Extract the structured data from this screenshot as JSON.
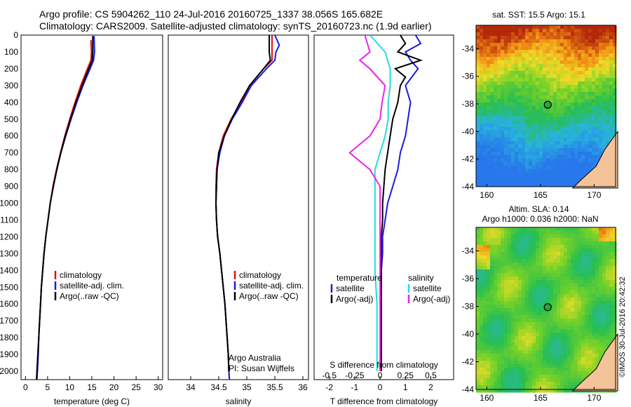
{
  "header": {
    "line1": "Argo profile: CS 5904262_110 24-Jul-2016 20160725_1337 38.056S 165.682E",
    "line2": "Climatology: CARS2009. Satellite-adjusted climatology: synTS_20160723.nc (1.9d earlier)"
  },
  "colors": {
    "climatology": "#dd1111",
    "satellite": "#1a1ae0",
    "argo": "#000000",
    "sal_satellite": "#22dddd",
    "sal_argo": "#ee22ee"
  },
  "depth_axis": {
    "ticks": [
      0,
      100,
      200,
      300,
      400,
      500,
      600,
      700,
      800,
      900,
      1000,
      1100,
      1200,
      1300,
      1400,
      1500,
      1600,
      1700,
      1800,
      1900,
      2000
    ],
    "range": [
      0,
      2050
    ]
  },
  "chart_data": [
    {
      "type": "line",
      "name": "temperature-profile",
      "xlabel": "temperature (deg C)",
      "xlim": [
        -1,
        31
      ],
      "xticks": [
        0,
        5,
        10,
        15,
        20,
        25,
        30
      ],
      "legend": [
        "climatology",
        "satellite-adj. clim.",
        "Argo(..raw -QC)"
      ],
      "series": [
        {
          "name": "climatology",
          "depth": [
            30,
            100,
            150,
            200,
            300,
            400,
            500,
            600,
            700,
            800,
            900,
            1000,
            1100,
            1200,
            1300,
            1400,
            1500,
            1600,
            1700,
            1800,
            1900,
            2000,
            2050
          ],
          "values": [
            14.8,
            14.9,
            14.8,
            14.0,
            12.5,
            11.2,
            10.0,
            8.9,
            7.9,
            7.0,
            6.2,
            5.6,
            5.1,
            4.6,
            4.2,
            3.9,
            3.6,
            3.4,
            3.2,
            3.0,
            2.8,
            2.6,
            2.5
          ]
        },
        {
          "name": "satellite-adj. clim.",
          "depth": [
            5,
            100,
            150,
            200,
            300,
            400,
            500,
            600,
            700,
            800,
            900,
            1000,
            1100,
            1200,
            1300,
            1400,
            1500,
            1600,
            1700,
            1800,
            1900,
            2000,
            2050
          ],
          "values": [
            15.5,
            15.6,
            15.4,
            14.6,
            13.0,
            11.6,
            10.3,
            9.1,
            8.0,
            7.1,
            6.3,
            5.6,
            5.1,
            4.6,
            4.2,
            3.9,
            3.6,
            3.4,
            3.2,
            3.0,
            2.9,
            2.7,
            2.6
          ]
        },
        {
          "name": "Argo(..raw -QC)",
          "depth": [
            5,
            100,
            150,
            200,
            300,
            400,
            500,
            600,
            700,
            800,
            900,
            1000,
            1100,
            1200,
            1300,
            1400,
            1500,
            1600,
            1700,
            1800,
            1900,
            2000,
            2050
          ],
          "values": [
            15.2,
            15.2,
            15.1,
            14.3,
            12.8,
            11.4,
            10.2,
            9.0,
            8.0,
            7.1,
            6.3,
            5.6,
            5.1,
            4.6,
            4.2,
            3.9,
            3.6,
            3.4,
            3.2,
            3.0,
            2.8,
            2.6,
            2.5
          ]
        }
      ]
    },
    {
      "type": "line",
      "name": "salinity-profile",
      "xlabel": "salinity",
      "xlim": [
        33.6,
        36.1
      ],
      "xticks": [
        34,
        34.5,
        35,
        35.5,
        36
      ],
      "legend": [
        "climatology",
        "satellite-adj. clim.",
        "Argo(..raw -QC)"
      ],
      "annotation": [
        "Argo Australia",
        "PI: Susan Wijffels"
      ],
      "series": [
        {
          "name": "climatology",
          "depth": [
            0,
            100,
            150,
            200,
            300,
            400,
            500,
            600,
            700,
            800,
            900,
            1000,
            1100,
            1200,
            1300,
            1400,
            1500,
            1600,
            1700,
            1800,
            1900,
            2000,
            2050
          ],
          "values": [
            35.45,
            35.45,
            35.45,
            35.3,
            35.05,
            34.9,
            34.72,
            34.58,
            34.5,
            34.46,
            34.45,
            34.45,
            34.46,
            34.48,
            34.52,
            34.55,
            34.58,
            34.61,
            34.63,
            34.65,
            34.67,
            34.68,
            34.69
          ]
        },
        {
          "name": "satellite-adj. clim.",
          "depth": [
            0,
            60,
            100,
            150,
            200,
            300,
            400,
            500,
            600,
            700,
            800,
            900,
            1000,
            1100,
            1200,
            1300,
            1400,
            1500,
            1600,
            1700,
            1800,
            1900,
            2000,
            2050
          ],
          "values": [
            35.5,
            35.58,
            35.52,
            35.5,
            35.35,
            35.08,
            34.92,
            34.74,
            34.6,
            34.52,
            34.47,
            34.46,
            34.45,
            34.46,
            34.48,
            34.52,
            34.55,
            34.58,
            34.61,
            34.63,
            34.65,
            34.67,
            34.68,
            34.69
          ]
        },
        {
          "name": "Argo(..raw -QC)",
          "depth": [
            0,
            100,
            150,
            200,
            300,
            400,
            500,
            600,
            700,
            800,
            900,
            1000,
            1100,
            1200,
            1300,
            1400,
            1500,
            1600,
            1700,
            1800,
            1900,
            2000
          ],
          "values": [
            35.4,
            35.4,
            35.42,
            35.3,
            35.05,
            34.88,
            34.73,
            34.6,
            34.5,
            34.47,
            34.46,
            34.45,
            34.46,
            34.48,
            34.52,
            34.55,
            34.58,
            34.61,
            34.63,
            34.65,
            34.67,
            34.68
          ]
        }
      ]
    },
    {
      "type": "line",
      "name": "difference-profile",
      "xlabel": "T difference from climatology",
      "xlabel_top": "S difference from climatology",
      "xlim": [
        -2.6,
        2.9
      ],
      "xticks": [
        -2,
        -1,
        0,
        1,
        2
      ],
      "xticks_top": [
        -0.5,
        -0.25,
        0,
        0.25,
        0.5
      ],
      "legend_temperature": [
        "temperature",
        "satellite",
        "Argo(-adj)"
      ],
      "legend_salinity": [
        "salinity",
        "satellite",
        "Argo(-adj)"
      ],
      "series": [
        {
          "name": "temperature satellite",
          "depth": [
            0,
            50,
            100,
            150,
            200,
            300,
            400,
            500,
            600,
            700,
            800,
            900,
            1000,
            1100,
            1200,
            1300,
            1400,
            1500,
            1600,
            1700,
            1800,
            1900,
            2000
          ],
          "values": [
            1.4,
            1.6,
            1.0,
            1.2,
            1.5,
            1.0,
            1.2,
            1.1,
            1.0,
            0.8,
            0.7,
            0.5,
            0.3,
            0.2,
            0.1,
            0.1,
            0.05,
            0.05,
            0.05,
            0.05,
            0.05,
            0.05,
            0.05
          ]
        },
        {
          "name": "temperature Argo(-adj)",
          "depth": [
            0,
            50,
            100,
            150,
            200,
            250,
            300,
            400,
            500,
            600,
            700,
            800,
            900,
            1000,
            1100,
            1200,
            1300,
            1400,
            1500,
            1600,
            1700,
            1800,
            1900,
            2000
          ],
          "values": [
            0.8,
            1.0,
            0.7,
            1.6,
            0.6,
            1.0,
            0.8,
            0.7,
            0.5,
            0.4,
            0.3,
            0.2,
            0.15,
            0.1,
            0.1,
            0.05,
            0.05,
            0.05,
            0.05,
            0.05,
            0.05,
            0.05,
            0.05,
            0.05
          ]
        },
        {
          "name": "salinity satellite",
          "depth": [
            0,
            100,
            200,
            300,
            400,
            500,
            600,
            700,
            800,
            900,
            1000,
            1200,
            1400,
            1600,
            1800,
            2000
          ],
          "values": [
            -0.1,
            0.05,
            0.1,
            0.1,
            0.08,
            0.08,
            0.05,
            0.0,
            -0.05,
            -0.05,
            -0.05,
            -0.05,
            -0.05,
            -0.03,
            -0.03,
            -0.03
          ]
        },
        {
          "name": "salinity Argo(-adj)",
          "depth": [
            0,
            100,
            150,
            200,
            300,
            400,
            500,
            600,
            700,
            800,
            900,
            1000,
            1200,
            1400,
            1600,
            1800,
            2000
          ],
          "values": [
            -0.15,
            -0.1,
            -0.2,
            -0.1,
            0.05,
            0.02,
            0.0,
            -0.1,
            -0.3,
            -0.1,
            0.0,
            0.0,
            0.0,
            0.0,
            0.0,
            0.0,
            0.0
          ]
        }
      ]
    },
    {
      "type": "heatmap",
      "name": "sst-map",
      "title": "sat. SST: 15.5 Argo: 15.1",
      "xlim": [
        159,
        172
      ],
      "ylim": [
        -44,
        -32.3
      ],
      "xticks": [
        160,
        165,
        170
      ],
      "yticks": [
        -34,
        -36,
        -38,
        -40,
        -42,
        -44
      ],
      "marker": {
        "lon": 165.68,
        "lat": -38.06
      }
    },
    {
      "type": "heatmap",
      "name": "sla-map",
      "title": "Altim. SLA: 0.14",
      "subtitle": "Argo h1000: 0.036 h2000: NaN",
      "xlim": [
        159,
        172
      ],
      "ylim": [
        -44,
        -32.3
      ],
      "xticks": [
        160,
        165,
        170
      ],
      "yticks": [
        -34,
        -36,
        -38,
        -40,
        -42,
        -44
      ],
      "marker": {
        "lon": 165.68,
        "lat": -38.06
      }
    }
  ],
  "credit": "©IMOS 30-Jul-2016 20:42:32"
}
